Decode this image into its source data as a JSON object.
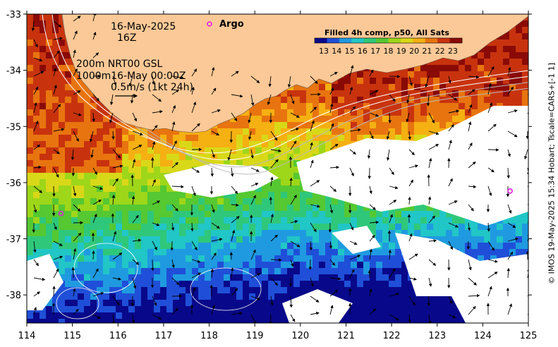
{
  "map": {
    "region": "Western Australia south coast / Great Australian Bight",
    "lon_range": [
      114,
      125
    ],
    "lat_range": [
      -38.5,
      -33
    ],
    "x_ticks": [
      "114",
      "115",
      "116",
      "117",
      "118",
      "119",
      "120",
      "121",
      "122",
      "123",
      "124",
      "125"
    ],
    "y_ticks": [
      "-33",
      "-34",
      "-35",
      "-36",
      "-37",
      "-38"
    ],
    "land_color": "#fbc997",
    "no_data_color": "#ffffff",
    "annotations": {
      "date": "16-May-2025",
      "time": "16Z",
      "contours": "200m  NRT00 GSL",
      "depth_time": "1000m16-May 00:00Z",
      "vector_scale": "0.5m/s (1kt 24h)"
    },
    "legend": {
      "argo_label": "Argo",
      "argo_color": "#e020e0"
    },
    "colorbar": {
      "title": "Filled 4h comp, p50, All Sats",
      "ticks": [
        "13",
        "14",
        "15",
        "16",
        "17",
        "18",
        "19",
        "20",
        "21",
        "22",
        "23"
      ],
      "colors": [
        "#08088a",
        "#1f4fd8",
        "#1f9ae0",
        "#21c6c6",
        "#2fc87a",
        "#55c832",
        "#9ed619",
        "#d9d818",
        "#f5b012",
        "#e8740f",
        "#c8330e",
        "#8a0a06"
      ]
    },
    "argo_floats": [
      {
        "lon": 114.75,
        "lat": -36.55
      },
      {
        "lon": 124.6,
        "lat": -36.15
      }
    ],
    "credit": "© IMOS 19-May-2025 15:34 Hobart; Tscale=CARS+[-1 1]"
  }
}
